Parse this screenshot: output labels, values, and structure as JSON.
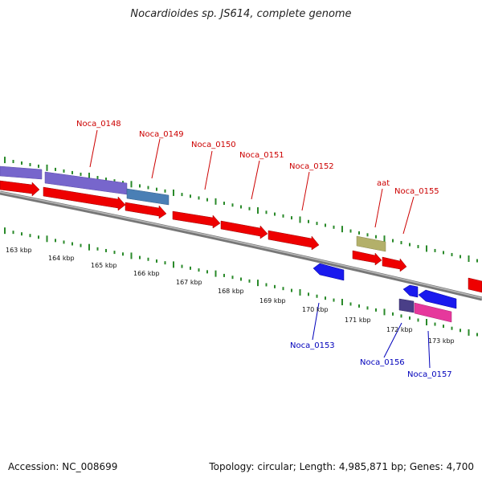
{
  "title": "Nocardioides sp. JS614, complete genome",
  "footer": {
    "accession": "Accession: NC_008699",
    "summary": "Topology: circular; Length: 4,985,871 bp; Genes: 4,700"
  },
  "kbp_labels": [
    "163 kbp",
    "164 kbp",
    "165 kbp",
    "166 kbp",
    "167 kbp",
    "168 kbp",
    "169 kbp",
    "170 kbp",
    "171 kbp",
    "172 kbp",
    "173 kbp"
  ],
  "top_labels": [
    "Noca_0148",
    "Noca_0149",
    "Noca_0150",
    "Noca_0151",
    "Noca_0152",
    "aat",
    "Noca_0155"
  ],
  "bottom_labels": [
    "Noca_0153",
    "Noca_0156",
    "Noca_0157"
  ],
  "colors": {
    "red_gene": "#ee0000",
    "blue_gene": "#1a1aee",
    "purple_feature": "#7766cc",
    "steelblue_feature": "#4a7fb5",
    "olive_feature": "#b3b06a",
    "dark_purple_feature": "#4a3f88",
    "pink_feature": "#e6389c",
    "tick_green": "#2a8a2a",
    "label_red": "#cc0000",
    "label_blue": "#0000bb",
    "backbone": "#888888"
  }
}
